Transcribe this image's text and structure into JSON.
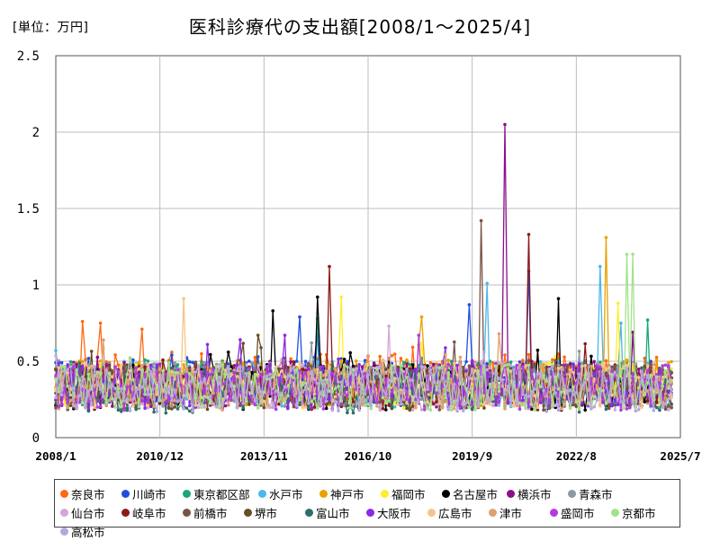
{
  "header": {
    "unit_label": "[単位：万円]",
    "title": "医科診療代の支出額[2008/1～2025/4]"
  },
  "chart_data": {
    "type": "line",
    "title": "医科診療代の支出額[2008/1～2025/4]",
    "unit": "万円",
    "x_start": "2008/1",
    "x_end": "2025/4",
    "xlim": [
      "2008/1",
      "2025/7"
    ],
    "ylim": [
      0,
      2.5
    ],
    "yticks": [
      0,
      0.5,
      1,
      1.5,
      2,
      2.5
    ],
    "ytick_labels": [
      "0",
      "0.5",
      "1",
      "1.5",
      "2",
      "2.5"
    ],
    "xtick_labels": [
      "2008/1",
      "2010/12",
      "2013/11",
      "2016/10",
      "2019/9",
      "2022/8",
      "2025/7"
    ],
    "grid": true,
    "legend_position": "bottom",
    "series": [
      {
        "name": "奈良市",
        "color": "#ff6a13",
        "base": 0.4,
        "spikes": [
          [
            "2008/10",
            0.76
          ],
          [
            "2009/4",
            0.75
          ],
          [
            "2010/6",
            0.71
          ]
        ]
      },
      {
        "name": "川崎市",
        "color": "#1f4fe0",
        "base": 0.38,
        "spikes": [
          [
            "2014/11",
            0.79
          ],
          [
            "2019/8",
            0.87
          ],
          [
            "2021/4",
            1.09
          ]
        ]
      },
      {
        "name": "東京都区部",
        "color": "#1aa67a",
        "base": 0.36,
        "spikes": [
          [
            "2015/5",
            0.78
          ],
          [
            "2024/8",
            0.77
          ]
        ]
      },
      {
        "name": "水戸市",
        "color": "#4cb7ec",
        "base": 0.35,
        "spikes": [
          [
            "2020/2",
            1.01
          ],
          [
            "2023/4",
            1.12
          ],
          [
            "2023/11",
            0.75
          ]
        ]
      },
      {
        "name": "神戸市",
        "color": "#e8a200",
        "base": 0.36,
        "spikes": [
          [
            "2018/4",
            0.79
          ],
          [
            "2023/6",
            1.31
          ]
        ]
      },
      {
        "name": "福岡市",
        "color": "#ffee2a",
        "base": 0.34,
        "spikes": [
          [
            "2016/1",
            0.92
          ],
          [
            "2023/10",
            0.88
          ]
        ]
      },
      {
        "name": "名古屋市",
        "color": "#000000",
        "base": 0.33,
        "spikes": [
          [
            "2014/2",
            0.83
          ],
          [
            "2015/5",
            0.92
          ],
          [
            "2022/2",
            0.91
          ]
        ]
      },
      {
        "name": "横浜市",
        "color": "#8c0f8c",
        "base": 0.35,
        "spikes": [
          [
            "2020/8",
            2.05
          ],
          [
            "2024/3",
            0.69
          ]
        ]
      },
      {
        "name": "青森市",
        "color": "#8c98a6",
        "base": 0.34,
        "spikes": [
          [
            "2015/3",
            0.62
          ]
        ]
      },
      {
        "name": "仙台市",
        "color": "#d4a6d6",
        "base": 0.33,
        "spikes": [
          [
            "2017/5",
            0.73
          ]
        ]
      },
      {
        "name": "岐阜市",
        "color": "#8b1a1a",
        "base": 0.33,
        "spikes": [
          [
            "2015/9",
            1.12
          ],
          [
            "2021/4",
            1.33
          ]
        ]
      },
      {
        "name": "前橋市",
        "color": "#7a5545",
        "base": 0.33,
        "spikes": [
          [
            "2019/12",
            1.42
          ]
        ]
      },
      {
        "name": "堺市",
        "color": "#6a4d24",
        "base": 0.33,
        "spikes": [
          [
            "2013/9",
            0.67
          ]
        ]
      },
      {
        "name": "富山市",
        "color": "#2d6f6a",
        "base": 0.31,
        "spikes": []
      },
      {
        "name": "大阪市",
        "color": "#8a2be2",
        "base": 0.34,
        "spikes": [
          [
            "2014/6",
            0.67
          ]
        ]
      },
      {
        "name": "広島市",
        "color": "#f5c48a",
        "base": 0.34,
        "spikes": [
          [
            "2011/8",
            0.91
          ]
        ]
      },
      {
        "name": "津市",
        "color": "#e0a070",
        "base": 0.33,
        "spikes": [
          [
            "2020/6",
            0.68
          ]
        ]
      },
      {
        "name": "盛岡市",
        "color": "#b23ce0",
        "base": 0.33,
        "spikes": [
          [
            "2018/3",
            0.67
          ]
        ]
      },
      {
        "name": "京都市",
        "color": "#a2e28a",
        "base": 0.33,
        "spikes": [
          [
            "2024/1",
            1.2
          ],
          [
            "2024/3",
            1.2
          ]
        ]
      },
      {
        "name": "高松市",
        "color": "#b8a6e0",
        "base": 0.32,
        "spikes": []
      }
    ]
  }
}
